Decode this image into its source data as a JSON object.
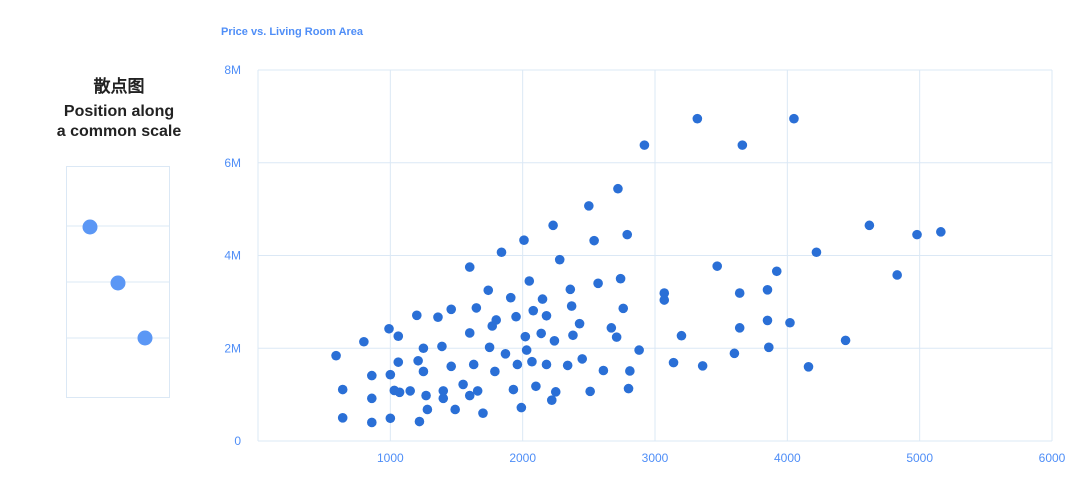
{
  "left_panel": {
    "title_cn": "散点图",
    "subtitle_line1": "Position along",
    "subtitle_line2": "a common scale",
    "icon": "mini-scatter-icon"
  },
  "colors": {
    "accent": "#4f8ef7",
    "point": "#2a6fd6",
    "grid": "#dbe8f5",
    "icon_point": "#5b97f5"
  },
  "chart_data": {
    "type": "scatter",
    "title": "Price vs. Living Room Area",
    "xlabel": "",
    "ylabel": "",
    "xlim": [
      0,
      6000
    ],
    "ylim": [
      0,
      8000000
    ],
    "x_ticks": [
      1000,
      2000,
      3000,
      4000,
      5000,
      6000
    ],
    "x_tick_labels": [
      "1000",
      "2000",
      "3000",
      "4000",
      "5000",
      "6000"
    ],
    "y_ticks": [
      0,
      2000000,
      4000000,
      6000000,
      8000000
    ],
    "y_tick_labels": [
      "0",
      "2M",
      "4M",
      "6M",
      "8M"
    ],
    "grid": true,
    "points": [
      [
        590,
        1840000
      ],
      [
        640,
        1110000
      ],
      [
        640,
        500000
      ],
      [
        800,
        2140000
      ],
      [
        860,
        1410000
      ],
      [
        860,
        920000
      ],
      [
        860,
        400000
      ],
      [
        990,
        2420000
      ],
      [
        1000,
        1430000
      ],
      [
        1000,
        490000
      ],
      [
        1030,
        1090000
      ],
      [
        1060,
        1700000
      ],
      [
        1060,
        2260000
      ],
      [
        1070,
        1050000
      ],
      [
        1150,
        1080000
      ],
      [
        1200,
        2710000
      ],
      [
        1210,
        1730000
      ],
      [
        1220,
        420000
      ],
      [
        1250,
        2000000
      ],
      [
        1250,
        1500000
      ],
      [
        1270,
        980000
      ],
      [
        1280,
        680000
      ],
      [
        1360,
        2670000
      ],
      [
        1390,
        2040000
      ],
      [
        1400,
        1080000
      ],
      [
        1400,
        920000
      ],
      [
        1460,
        2840000
      ],
      [
        1460,
        1610000
      ],
      [
        1490,
        680000
      ],
      [
        1550,
        1220000
      ],
      [
        1600,
        3750000
      ],
      [
        1600,
        2330000
      ],
      [
        1600,
        980000
      ],
      [
        1630,
        1650000
      ],
      [
        1650,
        2870000
      ],
      [
        1660,
        1080000
      ],
      [
        1700,
        600000
      ],
      [
        1740,
        3250000
      ],
      [
        1750,
        2020000
      ],
      [
        1770,
        2480000
      ],
      [
        1790,
        1500000
      ],
      [
        1800,
        2610000
      ],
      [
        1840,
        4070000
      ],
      [
        1870,
        1880000
      ],
      [
        1910,
        3090000
      ],
      [
        1930,
        1110000
      ],
      [
        1950,
        2680000
      ],
      [
        1960,
        1650000
      ],
      [
        1990,
        720000
      ],
      [
        2010,
        4330000
      ],
      [
        2020,
        2250000
      ],
      [
        2030,
        1960000
      ],
      [
        2050,
        3450000
      ],
      [
        2070,
        1710000
      ],
      [
        2080,
        2810000
      ],
      [
        2100,
        1180000
      ],
      [
        2140,
        2320000
      ],
      [
        2150,
        3060000
      ],
      [
        2180,
        1650000
      ],
      [
        2180,
        2700000
      ],
      [
        2220,
        880000
      ],
      [
        2230,
        4650000
      ],
      [
        2240,
        2160000
      ],
      [
        2250,
        1060000
      ],
      [
        2280,
        3910000
      ],
      [
        2340,
        1630000
      ],
      [
        2360,
        3270000
      ],
      [
        2370,
        2910000
      ],
      [
        2380,
        2280000
      ],
      [
        2430,
        2530000
      ],
      [
        2450,
        1770000
      ],
      [
        2500,
        5070000
      ],
      [
        2510,
        1070000
      ],
      [
        2540,
        4320000
      ],
      [
        2570,
        3400000
      ],
      [
        2610,
        1520000
      ],
      [
        2670,
        2440000
      ],
      [
        2710,
        2240000
      ],
      [
        2720,
        5440000
      ],
      [
        2740,
        3500000
      ],
      [
        2760,
        2860000
      ],
      [
        2790,
        4450000
      ],
      [
        2800,
        1130000
      ],
      [
        2810,
        1510000
      ],
      [
        2880,
        1960000
      ],
      [
        2920,
        6380000
      ],
      [
        3070,
        3190000
      ],
      [
        3070,
        3040000
      ],
      [
        3140,
        1690000
      ],
      [
        3200,
        2270000
      ],
      [
        3320,
        6950000
      ],
      [
        3360,
        1620000
      ],
      [
        3470,
        3770000
      ],
      [
        3600,
        1890000
      ],
      [
        3640,
        3190000
      ],
      [
        3640,
        2440000
      ],
      [
        3660,
        6380000
      ],
      [
        3850,
        3260000
      ],
      [
        3850,
        2600000
      ],
      [
        3860,
        2020000
      ],
      [
        3920,
        3660000
      ],
      [
        4020,
        2550000
      ],
      [
        4050,
        6950000
      ],
      [
        4160,
        1600000
      ],
      [
        4220,
        4070000
      ],
      [
        4440,
        2170000
      ],
      [
        4620,
        4650000
      ],
      [
        4830,
        3580000
      ],
      [
        4980,
        4450000
      ],
      [
        5160,
        4510000
      ]
    ]
  }
}
